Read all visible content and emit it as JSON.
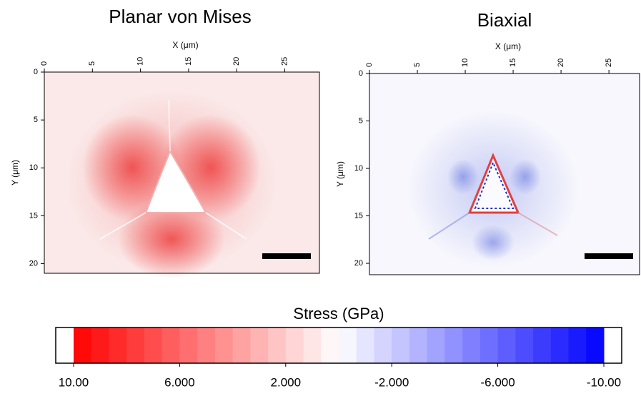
{
  "chart_data": [
    {
      "type": "heatmap",
      "title": "Planar von Mises",
      "xlabel": "X (μm)",
      "ylabel": "Y (μm)",
      "xlim": [
        0,
        28.6
      ],
      "ylim": [
        0,
        21
      ],
      "xticks": [
        0,
        5,
        10,
        15,
        20,
        25
      ],
      "yticks": [
        0,
        5,
        10,
        15,
        20
      ]
    },
    {
      "type": "heatmap",
      "title": "Biaxial",
      "xlabel": "X (μm)",
      "ylabel": "Y (μm)",
      "xlim": [
        0,
        28.2
      ],
      "ylim": [
        0,
        21.2
      ],
      "xticks": [
        0,
        5,
        10,
        15,
        20,
        25
      ],
      "yticks": [
        0,
        5,
        10,
        15,
        20
      ]
    },
    {
      "type": "colorbar",
      "title": "Stress (GPa)",
      "clim": [
        10,
        -10
      ],
      "colors": [
        "#ff0000",
        "#ffffff",
        "#0000ff"
      ],
      "ticks": [
        {
          "value": 10,
          "label": "10.00"
        },
        {
          "value": 6,
          "label": "6.000"
        },
        {
          "value": 2,
          "label": "2.000"
        },
        {
          "value": -2,
          "label": "-2.000"
        },
        {
          "value": -6,
          "label": "-6.000"
        },
        {
          "value": -10,
          "label": "-10.00"
        }
      ]
    }
  ]
}
